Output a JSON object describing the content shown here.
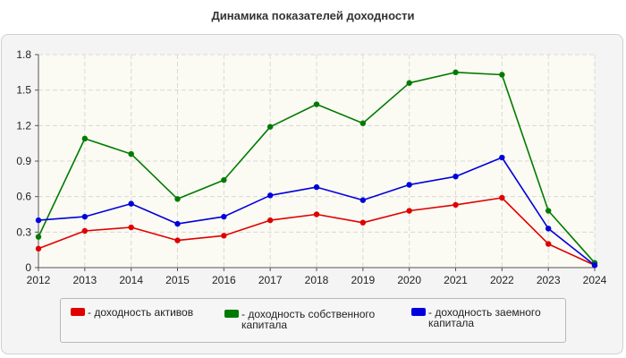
{
  "title": "Динамика показателей доходности",
  "chart_data": {
    "type": "line",
    "title": "Динамика показателей доходности",
    "x": [
      "2012",
      "2013",
      "2014",
      "2015",
      "2016",
      "2017",
      "2018",
      "2019",
      "2020",
      "2021",
      "2022",
      "2023",
      "2024"
    ],
    "ylim": [
      0,
      1.8
    ],
    "yticks": [
      "0",
      "0.3",
      "0.6",
      "0.9",
      "1.2",
      "1.5",
      "1.8"
    ],
    "grid": true,
    "legend_position": "bottom",
    "series": [
      {
        "name": "- доходность активов",
        "color": "#e00000",
        "values": [
          0.16,
          0.31,
          0.34,
          0.23,
          0.27,
          0.4,
          0.45,
          0.38,
          0.48,
          0.53,
          0.59,
          0.2,
          0.02
        ]
      },
      {
        "name": "- доходность собственного капитала",
        "color": "#007a00",
        "values": [
          0.26,
          1.09,
          0.96,
          0.58,
          0.74,
          1.19,
          1.38,
          1.22,
          1.56,
          1.65,
          1.63,
          0.48,
          0.04
        ]
      },
      {
        "name": "- доходность заемного капитала",
        "color": "#0000dd",
        "values": [
          0.4,
          0.43,
          0.54,
          0.37,
          0.43,
          0.61,
          0.68,
          0.57,
          0.7,
          0.77,
          0.93,
          0.33,
          0.02
        ]
      }
    ]
  }
}
